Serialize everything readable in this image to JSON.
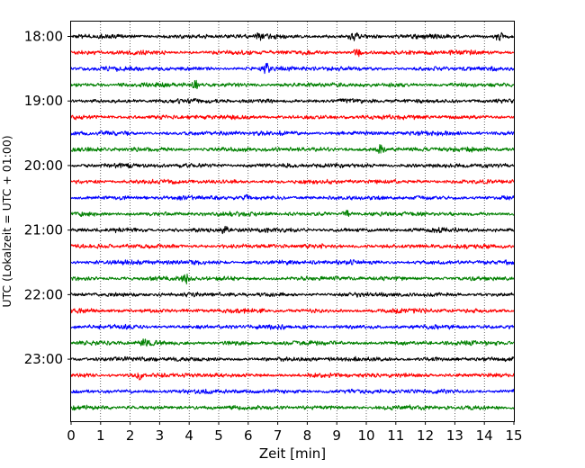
{
  "chart_data": {
    "type": "line",
    "title": "",
    "xlabel": "Zeit  [min]",
    "ylabel": "UTC (Lokalzeit = UTC + 01:00)",
    "xlim": [
      0,
      15
    ],
    "x_ticks": [
      0,
      1,
      2,
      3,
      4,
      5,
      6,
      7,
      8,
      9,
      10,
      11,
      12,
      13,
      14,
      15
    ],
    "y_tick_labels": [
      "18:00",
      "19:00",
      "20:00",
      "21:00",
      "22:00",
      "23:00"
    ],
    "y_tick_trace_index": [
      0,
      4,
      8,
      12,
      16,
      20
    ],
    "trace_start_times": [
      "18:00",
      "18:15",
      "18:30",
      "18:45",
      "19:00",
      "19:15",
      "19:30",
      "19:45",
      "20:00",
      "20:15",
      "20:30",
      "20:45",
      "21:00",
      "21:15",
      "21:30",
      "21:45",
      "22:00",
      "22:15",
      "22:30",
      "22:45",
      "23:00",
      "23:15",
      "23:30",
      "23:45"
    ],
    "trace_colors": [
      "#000000",
      "#ff0000",
      "#0000ff",
      "#008000"
    ],
    "x_grid": true,
    "grid_style": "dotted",
    "legend": "none",
    "bursts": [
      {
        "trace": 0,
        "x": 6.4,
        "amp": 1.8
      },
      {
        "trace": 0,
        "x": 9.6,
        "amp": 1.9
      },
      {
        "trace": 0,
        "x": 14.5,
        "amp": 1.7
      },
      {
        "trace": 1,
        "x": 9.7,
        "amp": 1.8
      },
      {
        "trace": 2,
        "x": 6.6,
        "amp": 1.9
      },
      {
        "trace": 3,
        "x": 4.2,
        "amp": 1.7
      },
      {
        "trace": 7,
        "x": 10.5,
        "amp": 2.4
      },
      {
        "trace": 10,
        "x": 6.0,
        "amp": 1.6
      },
      {
        "trace": 11,
        "x": 9.3,
        "amp": 1.6
      },
      {
        "trace": 12,
        "x": 5.2,
        "amp": 1.6
      },
      {
        "trace": 15,
        "x": 3.9,
        "amp": 1.6
      },
      {
        "trace": 19,
        "x": 2.5,
        "amp": 1.6
      },
      {
        "trace": 21,
        "x": 2.3,
        "amp": 1.6
      }
    ]
  }
}
